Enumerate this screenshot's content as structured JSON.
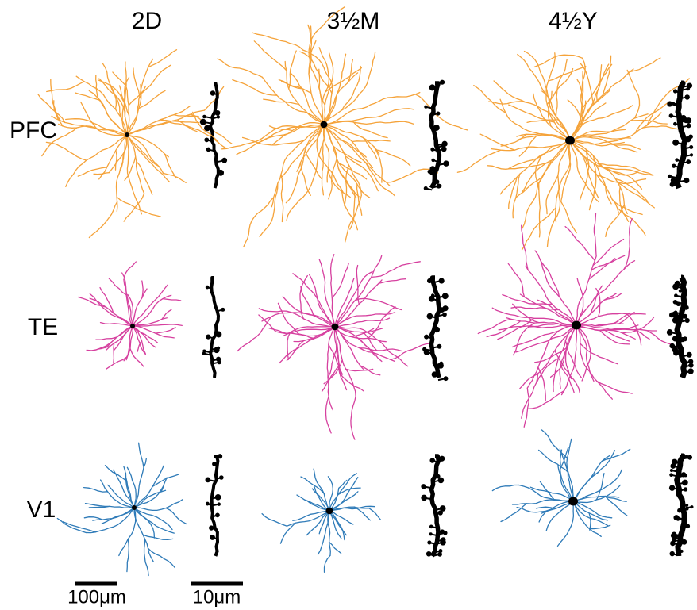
{
  "columns": [
    "2D",
    "3½M",
    "4½Y"
  ],
  "rows": [
    "PFC",
    "TE",
    "V1"
  ],
  "scale_bars": [
    "100μm",
    "10μm"
  ]
}
